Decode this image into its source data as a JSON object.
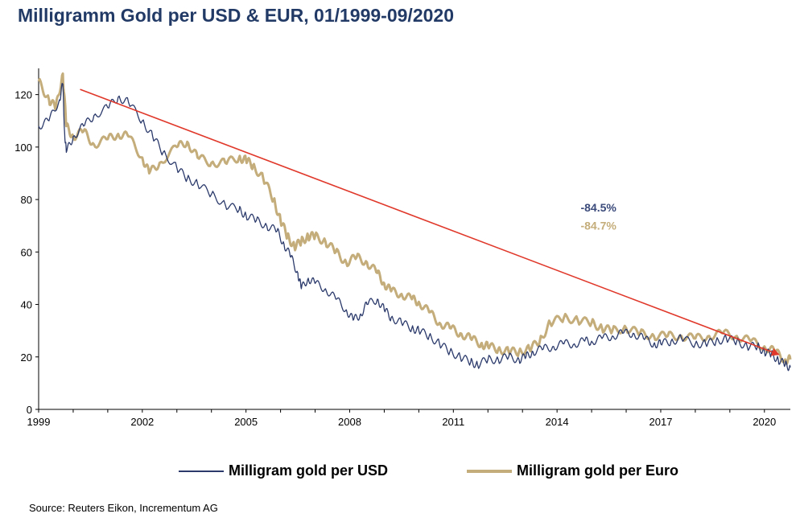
{
  "chart_data": {
    "type": "line",
    "title": "Milligramm Gold per USD & EUR, 01/1999-09/2020",
    "xlabel": "",
    "ylabel": "",
    "xlim": [
      1999.0,
      2020.75
    ],
    "ylim": [
      0,
      130
    ],
    "yticks": [
      0,
      20,
      40,
      60,
      80,
      100,
      120
    ],
    "xticks": [
      1999,
      2002,
      2005,
      2008,
      2011,
      2014,
      2017,
      2020
    ],
    "series": [
      {
        "name": "Milligram gold per USD",
        "color": "#2b3a6b",
        "x": [
          1999.0,
          1999.3,
          1999.6,
          1999.7,
          1999.75,
          1999.8,
          2000.0,
          2000.3,
          2000.6,
          2001.0,
          2001.3,
          2001.6,
          2002.0,
          2002.3,
          2002.6,
          2003.0,
          2003.3,
          2003.6,
          2004.0,
          2004.4,
          2004.8,
          2005.0,
          2005.3,
          2005.6,
          2005.9,
          2006.1,
          2006.3,
          2006.5,
          2006.6,
          2006.8,
          2007.0,
          2007.3,
          2007.6,
          2007.9,
          2008.1,
          2008.3,
          2008.5,
          2008.8,
          2009.0,
          2009.2,
          2009.5,
          2009.8,
          2010.0,
          2010.3,
          2010.6,
          2010.9,
          2011.2,
          2011.5,
          2011.7,
          2012.0,
          2012.3,
          2012.6,
          2012.9,
          2013.1,
          2013.3,
          2013.6,
          2013.9,
          2014.2,
          2014.5,
          2014.8,
          2015.0,
          2015.3,
          2015.6,
          2015.9,
          2016.2,
          2016.5,
          2016.8,
          2017.0,
          2017.3,
          2017.6,
          2018.0,
          2018.3,
          2018.6,
          2018.9,
          2019.2,
          2019.5,
          2019.8,
          2020.0,
          2020.2,
          2020.4,
          2020.6,
          2020.75
        ],
        "values": [
          108,
          110,
          118,
          124,
          106,
          98,
          104,
          108,
          112,
          115,
          119,
          117,
          110,
          104,
          98,
          92,
          88,
          86,
          82,
          78,
          76,
          74,
          72,
          70,
          68,
          63,
          58,
          52,
          46,
          50,
          48,
          46,
          42,
          38,
          34,
          36,
          40,
          42,
          38,
          35,
          33,
          31,
          30,
          28,
          25,
          22,
          20,
          18,
          17,
          19,
          19,
          20,
          19,
          20,
          22,
          23,
          24,
          25,
          25,
          26,
          26,
          27,
          28,
          29,
          29,
          27,
          25,
          25,
          26,
          27,
          25,
          25,
          26,
          27,
          26,
          24,
          24,
          22,
          21,
          19,
          17,
          16
        ]
      },
      {
        "name": "Milligram gold per Euro",
        "color": "#c4ad7a",
        "x": [
          1999.0,
          1999.3,
          1999.5,
          1999.7,
          1999.8,
          2000.0,
          2000.3,
          2000.6,
          2001.0,
          2001.3,
          2001.6,
          2002.0,
          2002.2,
          2002.5,
          2003.0,
          2003.3,
          2003.6,
          2004.0,
          2004.4,
          2004.8,
          2005.0,
          2005.2,
          2005.5,
          2005.8,
          2006.0,
          2006.2,
          2006.4,
          2006.6,
          2006.8,
          2007.0,
          2007.3,
          2007.6,
          2007.9,
          2008.2,
          2008.5,
          2008.8,
          2009.0,
          2009.2,
          2009.5,
          2009.8,
          2010.0,
          2010.3,
          2010.6,
          2010.9,
          2011.2,
          2011.5,
          2011.8,
          2012.0,
          2012.3,
          2012.6,
          2012.9,
          2013.2,
          2013.5,
          2013.8,
          2014.2,
          2014.6,
          2015.0,
          2015.3,
          2015.6,
          2016.0,
          2016.4,
          2016.8,
          2017.2,
          2017.6,
          2018.0,
          2018.4,
          2018.8,
          2019.2,
          2019.6,
          2020.0,
          2020.3,
          2020.6,
          2020.75
        ],
        "values": [
          125,
          118,
          115,
          128,
          108,
          104,
          106,
          101,
          103,
          105,
          104,
          96,
          90,
          94,
          100,
          102,
          96,
          94,
          94,
          96,
          95,
          93,
          88,
          80,
          72,
          66,
          62,
          64,
          66,
          66,
          64,
          60,
          56,
          58,
          56,
          52,
          48,
          45,
          44,
          42,
          41,
          37,
          33,
          31,
          29,
          27,
          25,
          24,
          23,
          22,
          22,
          23,
          26,
          33,
          35,
          34,
          33,
          31,
          30,
          31,
          29,
          28,
          28,
          28,
          27,
          28,
          29,
          28,
          26,
          24,
          22,
          19,
          19
        ]
      }
    ],
    "trend_arrow": {
      "from": [
        2000.2,
        122
      ],
      "to": [
        2020.4,
        21
      ],
      "color": "#e0392b"
    },
    "annotations": [
      {
        "text": "-84.5%",
        "x": 2015.2,
        "y": 75.5,
        "color": "#3a4a7a"
      },
      {
        "text": "-84.7%",
        "x": 2015.2,
        "y": 68.5,
        "color": "#c4ad7a"
      }
    ],
    "legend_position": "bottom"
  },
  "legend": {
    "usd_label": "Milligram gold per USD",
    "eur_label": "Milligram gold per Euro"
  },
  "source": "Source: Reuters Eikon, Incrementum AG"
}
